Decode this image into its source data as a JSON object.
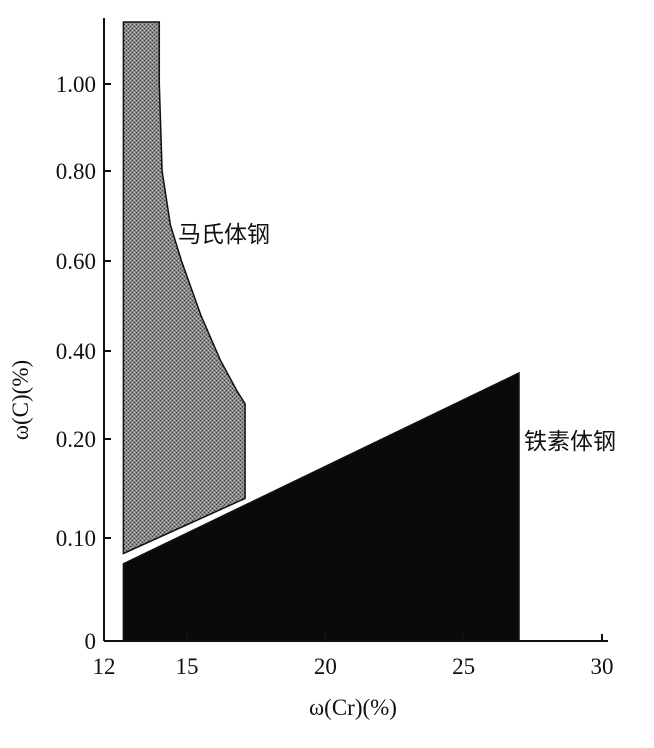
{
  "chart_data": {
    "type": "area",
    "title": "",
    "xlabel": "ω(Cr)(%)",
    "ylabel": "ω(C)(%)",
    "xlim": [
      12,
      30
    ],
    "ylim": [
      0,
      1.1
    ],
    "grid": false,
    "x_ticks": [
      12,
      15,
      20,
      25,
      30
    ],
    "x_tick_labels": [
      "12",
      "15",
      "20",
      "25",
      "30"
    ],
    "y_ticks": [
      0,
      0.1,
      0.2,
      0.4,
      0.6,
      0.8,
      1.0
    ],
    "y_tick_labels": [
      "0",
      "0.10",
      "0.20",
      "0.40",
      "0.60",
      "0.80",
      "1.00"
    ],
    "y_scale_note": "nonlinear: 0–0.20 expanded",
    "regions": [
      {
        "name": "马氏体钢",
        "fill": "#7a7a7a",
        "pattern": "stipple",
        "boundary": [
          [
            12.7,
            1.13
          ],
          [
            14.0,
            1.13
          ],
          [
            14.0,
            1.0
          ],
          [
            14.1,
            0.8
          ],
          [
            14.4,
            0.68
          ],
          [
            14.8,
            0.6
          ],
          [
            15.5,
            0.48
          ],
          [
            16.2,
            0.38
          ],
          [
            16.8,
            0.31
          ],
          [
            17.1,
            0.28
          ],
          [
            17.1,
            0.2
          ],
          [
            17.1,
            0.14
          ],
          [
            12.7,
            0.085
          ]
        ]
      },
      {
        "name": "铁素体钢",
        "fill": "#0a0a0a",
        "pattern": "solid",
        "boundary": [
          [
            12.7,
            0.075
          ],
          [
            27.0,
            0.35
          ],
          [
            27.0,
            0.0
          ],
          [
            12.7,
            0.0
          ]
        ]
      }
    ]
  }
}
